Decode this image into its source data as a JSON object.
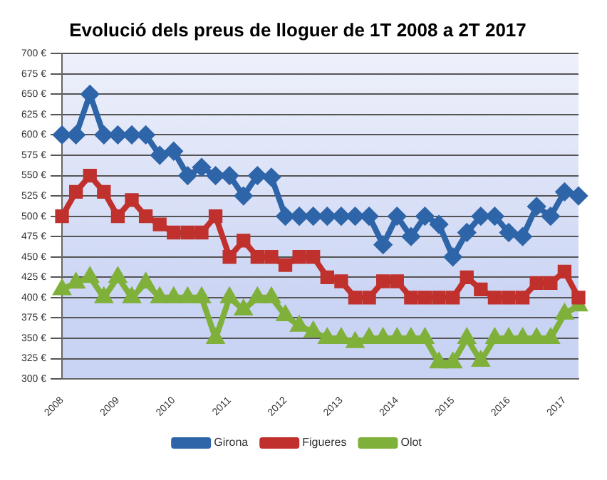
{
  "chart_data": {
    "type": "line",
    "title": "Evolució dels preus de lloguer de 1T 2008 a 2T 2017",
    "categories": [
      "2008",
      null,
      null,
      null,
      "2009",
      null,
      null,
      null,
      "2010",
      null,
      null,
      null,
      "2011",
      null,
      null,
      null,
      "2012",
      null,
      null,
      null,
      "2013",
      null,
      null,
      null,
      "2014",
      null,
      null,
      null,
      "2015",
      null,
      null,
      null,
      "2016",
      null,
      null,
      null,
      "2017",
      null
    ],
    "series": [
      {
        "name": "Girona",
        "color": "#2e64a8",
        "marker": "diamond",
        "values": [
          600,
          600,
          650,
          600,
          600,
          600,
          600,
          575,
          580,
          550,
          560,
          550,
          550,
          525,
          550,
          548,
          500,
          500,
          500,
          500,
          500,
          500,
          500,
          465,
          500,
          475,
          500,
          490,
          450,
          480,
          500,
          500,
          480,
          475,
          512,
          500,
          530,
          525
        ]
      },
      {
        "name": "Figueres",
        "color": "#c0302c",
        "marker": "square",
        "values": [
          500,
          530,
          550,
          530,
          500,
          520,
          500,
          490,
          480,
          480,
          480,
          500,
          450,
          470,
          450,
          450,
          440,
          450,
          450,
          425,
          420,
          400,
          400,
          420,
          420,
          400,
          400,
          400,
          400,
          425,
          410,
          400,
          400,
          400,
          418,
          418,
          432,
          400
        ]
      },
      {
        "name": "Olot",
        "color": "#7fb03a",
        "marker": "triangle",
        "values": [
          410,
          418,
          425,
          400,
          425,
          400,
          418,
          400,
          400,
          400,
          400,
          350,
          400,
          385,
          400,
          400,
          378,
          365,
          358,
          350,
          350,
          345,
          350,
          350,
          350,
          350,
          350,
          320,
          320,
          350,
          322,
          350,
          350,
          350,
          350,
          350,
          380,
          390
        ]
      }
    ],
    "ylim": [
      300,
      700
    ],
    "yticks": [
      {
        "value": 300,
        "label": "300 €"
      },
      {
        "value": 325,
        "label": "325 €"
      },
      {
        "value": 350,
        "label": "350 €"
      },
      {
        "value": 375,
        "label": "375 €"
      },
      {
        "value": 400,
        "label": "400 €"
      },
      {
        "value": 425,
        "label": "425 €"
      },
      {
        "value": 450,
        "label": "450 €"
      },
      {
        "value": 475,
        "label": "475 €"
      },
      {
        "value": 500,
        "label": "500 €"
      },
      {
        "value": 525,
        "label": "525 €"
      },
      {
        "value": 550,
        "label": "550 €"
      },
      {
        "value": 575,
        "label": "575 €"
      },
      {
        "value": 600,
        "label": "600 €"
      },
      {
        "value": 625,
        "label": "625 €"
      },
      {
        "value": 650,
        "label": "650 €"
      },
      {
        "value": 675,
        "label": "675 €"
      },
      {
        "value": 700,
        "label": "700 €"
      }
    ],
    "grid": "y",
    "legend": "bottom"
  }
}
